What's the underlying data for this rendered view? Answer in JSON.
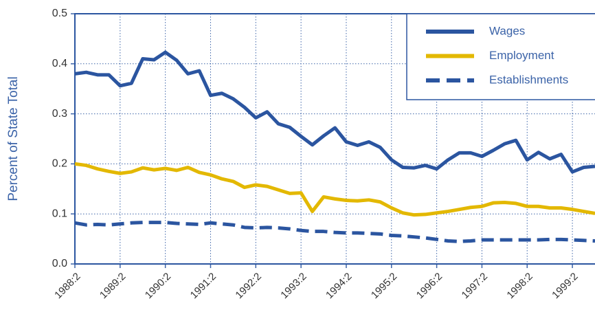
{
  "chart_data": {
    "type": "line",
    "ylabel": "Percent of State Total",
    "categories": [
      "1988:2",
      null,
      null,
      null,
      "1989:2",
      null,
      null,
      null,
      "1990:2",
      null,
      null,
      null,
      "1991:2",
      null,
      null,
      null,
      "1992:2",
      null,
      null,
      null,
      "1993:2",
      null,
      null,
      null,
      "1994:2",
      null,
      null,
      null,
      "1995:2",
      null,
      null,
      null,
      "1996:2",
      null,
      null,
      null,
      "1997:2",
      null,
      null,
      null,
      "1998:2",
      null,
      null,
      null,
      "1999:2",
      null,
      null
    ],
    "series": [
      {
        "name": "Wages",
        "color": "#2b55a0",
        "line_style": "solid",
        "values": [
          0.38,
          0.383,
          0.378,
          0.378,
          0.356,
          0.361,
          0.41,
          0.408,
          0.423,
          0.407,
          0.38,
          0.386,
          0.337,
          0.341,
          0.33,
          0.313,
          0.292,
          0.304,
          0.28,
          0.273,
          0.255,
          0.238,
          0.256,
          0.272,
          0.244,
          0.237,
          0.244,
          0.233,
          0.208,
          0.193,
          0.192,
          0.197,
          0.19,
          0.208,
          0.222,
          0.222,
          0.215,
          0.227,
          0.24,
          0.247,
          0.208,
          0.223,
          0.21,
          0.219,
          0.184,
          0.193,
          0.195
        ]
      },
      {
        "name": "Employment",
        "color": "#e3b800",
        "line_style": "solid",
        "values": [
          0.2,
          0.197,
          0.19,
          0.185,
          0.181,
          0.184,
          0.192,
          0.188,
          0.191,
          0.187,
          0.193,
          0.183,
          0.178,
          0.17,
          0.165,
          0.153,
          0.158,
          0.155,
          0.148,
          0.141,
          0.142,
          0.105,
          0.134,
          0.13,
          0.127,
          0.126,
          0.128,
          0.124,
          0.112,
          0.102,
          0.098,
          0.099,
          0.102,
          0.105,
          0.109,
          0.113,
          0.115,
          0.122,
          0.123,
          0.121,
          0.115,
          0.115,
          0.112,
          0.112,
          0.109,
          0.105,
          0.101
        ]
      },
      {
        "name": "Establishments",
        "color": "#2b55a0",
        "line_style": "dashed",
        "values": [
          0.082,
          0.078,
          0.079,
          0.078,
          0.08,
          0.082,
          0.083,
          0.083,
          0.083,
          0.081,
          0.08,
          0.079,
          0.082,
          0.08,
          0.078,
          0.073,
          0.072,
          0.073,
          0.072,
          0.07,
          0.067,
          0.065,
          0.065,
          0.063,
          0.062,
          0.062,
          0.061,
          0.06,
          0.057,
          0.056,
          0.054,
          0.052,
          0.049,
          0.046,
          0.045,
          0.046,
          0.048,
          0.048,
          0.048,
          0.048,
          0.048,
          0.048,
          0.049,
          0.049,
          0.048,
          0.047,
          0.046
        ]
      }
    ],
    "ylim": [
      0,
      0.5
    ],
    "yticks": [
      {
        "value": 0,
        "label": "0.0"
      },
      0.1,
      0.2,
      0.3,
      0.4,
      0.5
    ],
    "grid": true,
    "legend": "top-right"
  }
}
